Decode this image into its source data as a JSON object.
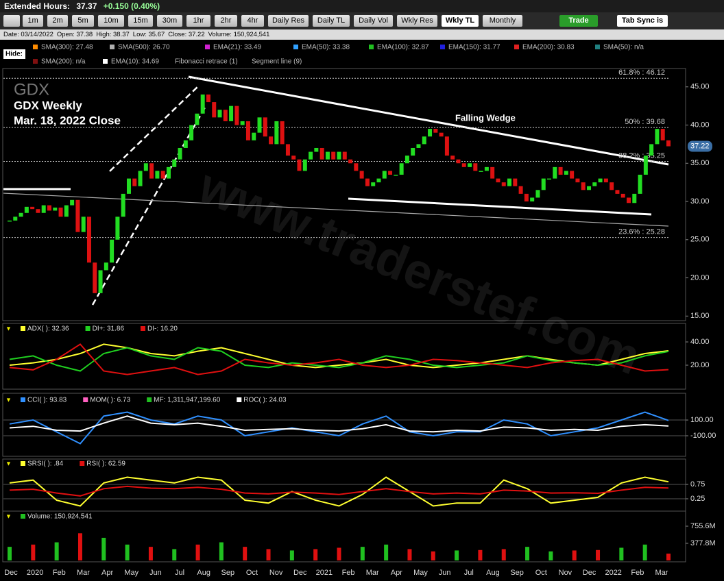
{
  "quote": {
    "label": "Extended Hours:",
    "price": "37.37",
    "change": "+0.150 (0.40%)"
  },
  "toolbar": {
    "buttons": [
      "1m",
      "2m",
      "5m",
      "10m",
      "15m",
      "30m",
      "1hr",
      "2hr",
      "4hr",
      "Daily Res",
      "Daily TL",
      "Daily Vol",
      "Wkly Res",
      "Wkly TL",
      "Monthly"
    ],
    "active": "Wkly TL",
    "trade": "Trade",
    "tab_sync": "Tab Sync is On"
  },
  "info": [
    "Date: 03/14/2022",
    "Open: 37.38",
    "High: 38.37",
    "Low: 35.67",
    "Close: 37.22",
    "Volume: 150,924,541"
  ],
  "hide": "Hide:",
  "chart_data": [
    {
      "type": "candlestick",
      "symbol": "GDX",
      "title": "GDX Weekly",
      "subtitle": "Mar. 18, 2022 Close",
      "annotation": "Falling Wedge",
      "watermark": "www.traderstef.com",
      "indicators": [
        {
          "name": "SMA(300): 27.48",
          "color": "#ff8c00"
        },
        {
          "name": "SMA(500): 26.70",
          "color": "#b0b0b0"
        },
        {
          "name": "EMA(21): 33.49",
          "color": "#d020d0"
        },
        {
          "name": "EMA(50): 33.38",
          "color": "#30a0ff"
        },
        {
          "name": "EMA(100): 32.87",
          "color": "#20c020"
        },
        {
          "name": "EMA(150): 31.77",
          "color": "#2020e0"
        },
        {
          "name": "EMA(200): 30.83",
          "color": "#e02020"
        },
        {
          "name": "SMA(50): n/a",
          "color": "#208080"
        },
        {
          "name": "SMA(200): n/a",
          "color": "#801010"
        },
        {
          "name": "EMA(10): 34.69",
          "color": "#ffffff"
        },
        {
          "name": "Fibonacci retrace (1)",
          "color": null
        },
        {
          "name": "Segment line (9)",
          "color": null
        }
      ],
      "fibonacci": [
        {
          "label": "61.8% : 46.12",
          "value": 46.12
        },
        {
          "label": "50% : 39.68",
          "value": 39.68
        },
        {
          "label": "38.2% : 35.25",
          "value": 35.25
        },
        {
          "label": "23.6% : 25.28",
          "value": 25.28
        }
      ],
      "values": [
        27.5,
        28,
        28.5,
        29.3,
        29,
        28.5,
        29.5,
        28.8,
        29.2,
        28,
        29.5,
        30.2,
        26,
        28,
        22,
        18,
        21,
        22,
        25,
        28,
        31,
        33,
        32,
        34,
        35,
        33,
        34,
        33,
        34.5,
        35.5,
        37,
        38,
        40,
        41.5,
        44,
        43,
        41,
        42,
        40.5,
        42.5,
        40,
        40.5,
        38,
        39,
        41,
        38.5,
        37.5,
        40.5,
        37.5,
        36,
        35.5,
        34,
        35.5,
        36.5,
        37,
        35.5,
        36.5,
        35.5,
        36.5,
        35.5,
        35,
        34,
        33,
        32,
        32.5,
        33,
        34,
        33.5,
        33.5,
        35,
        36,
        37,
        37.5,
        38.5,
        39.5,
        39,
        38.5,
        36,
        35.5,
        35,
        34.5,
        35,
        34,
        34,
        34.5,
        33,
        32.5,
        32,
        33,
        32,
        31,
        30,
        30.5,
        31.5,
        33,
        33,
        34.5,
        33.5,
        34,
        33,
        32.5,
        31.5,
        32,
        32.5,
        33,
        32.5,
        31.5,
        31,
        30.5,
        29.8,
        31,
        33.5,
        36,
        37.5,
        39.5,
        38,
        37.22
      ],
      "up_color": "#22dd22",
      "down_color": "#dd1111",
      "ylim": [
        14.4,
        47.4
      ],
      "yticks": [
        {
          "value": 45,
          "label": "45.00"
        },
        {
          "value": 40,
          "label": "40.00"
        },
        {
          "value": 35,
          "label": "35.00"
        },
        {
          "value": 30,
          "label": "30.00"
        },
        {
          "value": 25,
          "label": "25.00"
        },
        {
          "value": 20,
          "label": "20.00"
        },
        {
          "value": 15,
          "label": "15.00"
        }
      ]
    },
    {
      "type": "line",
      "ylim": [
        -0.6,
        46.5
      ],
      "yticks": [
        {
          "value": 40,
          "label": "40.00"
        },
        {
          "value": 20,
          "label": "20.00"
        }
      ],
      "series": [
        {
          "name": "ADX( ): 32.36",
          "color": "#ffff30",
          "values": [
            20,
            22,
            25,
            30,
            38,
            35,
            30,
            28,
            32,
            35,
            30,
            25,
            20,
            18,
            20,
            22,
            25,
            20,
            18,
            20,
            22,
            25,
            28,
            25,
            22,
            20,
            25,
            30,
            32.36
          ]
        },
        {
          "name": "DI+: 31.86",
          "color": "#20d020",
          "values": [
            25,
            28,
            20,
            15,
            30,
            35,
            28,
            25,
            35,
            32,
            20,
            18,
            22,
            20,
            18,
            22,
            28,
            25,
            20,
            18,
            20,
            22,
            28,
            24,
            22,
            20,
            22,
            28,
            31.86
          ]
        },
        {
          "name": "DI-: 16.20",
          "color": "#e01010",
          "values": [
            18,
            16,
            25,
            38,
            15,
            12,
            15,
            18,
            12,
            15,
            25,
            22,
            20,
            22,
            25,
            20,
            18,
            20,
            25,
            24,
            22,
            20,
            18,
            22,
            24,
            25,
            20,
            15,
            16.2
          ]
        }
      ]
    },
    {
      "type": "line",
      "ylim": [
        -352,
        283
      ],
      "yticks": [
        {
          "value": 100,
          "label": "100.00"
        },
        {
          "value": -100,
          "label": "-100.00"
        }
      ],
      "series": [
        {
          "name": "CCI( ): 93.83",
          "color": "#3090ff",
          "values": [
            50,
            100,
            -50,
            -200,
            150,
            200,
            100,
            50,
            150,
            100,
            -100,
            -50,
            0,
            -50,
            -100,
            50,
            150,
            -50,
            -100,
            -50,
            -50,
            100,
            50,
            -100,
            -50,
            0,
            100,
            200,
            93.83
          ]
        },
        {
          "name": "MOM( ): 6.73",
          "color": "#ff60c0"
        },
        {
          "name": "MF: 1,311,947,199.60",
          "color": "#20c020"
        },
        {
          "name": "ROC( ): 24.03",
          "color": "#ffffff",
          "values": [
            0,
            20,
            -30,
            -40,
            60,
            150,
            60,
            40,
            60,
            20,
            -30,
            -20,
            -10,
            -30,
            -40,
            -10,
            40,
            -40,
            -50,
            -30,
            -40,
            10,
            0,
            -30,
            -20,
            -30,
            20,
            40,
            24.03
          ]
        }
      ]
    },
    {
      "type": "line",
      "ylim": [
        -0.155,
        1.274
      ],
      "y2lim": [
        -15.5,
        127.4
      ],
      "yticks": [
        0.75,
        0.25
      ],
      "series": [
        {
          "name": "SRSI( ): .84",
          "color": "#ffff30",
          "values": [
            0.8,
            0.9,
            0.2,
            0,
            0.8,
            1,
            0.9,
            0.8,
            1,
            0.9,
            0.2,
            0.1,
            0.5,
            0.2,
            0,
            0.4,
            1,
            0.5,
            0,
            0.1,
            0.1,
            0.9,
            0.6,
            0.1,
            0.2,
            0.3,
            0.8,
            1,
            0.84
          ]
        },
        {
          "name": "RSI( ): 62.59",
          "color": "#e01010",
          "axis": "y2",
          "values": [
            55,
            58,
            45,
            35,
            60,
            68,
            62,
            60,
            65,
            58,
            45,
            42,
            48,
            45,
            40,
            50,
            60,
            50,
            42,
            45,
            42,
            55,
            52,
            45,
            46,
            44,
            55,
            65,
            62.59
          ]
        }
      ]
    },
    {
      "type": "bar",
      "ylim": [
        0,
        876500000
      ],
      "yticks": [
        {
          "value": 755600000,
          "label": "755.6M"
        },
        {
          "value": 377800000,
          "label": "377.8M"
        }
      ],
      "series": [
        {
          "name": "Volume: 150,924,541",
          "color": "#20c020"
        }
      ],
      "values": [
        300000000,
        350000000,
        400000000,
        600000000,
        500000000,
        350000000,
        300000000,
        250000000,
        350000000,
        400000000,
        300000000,
        250000000,
        220000000,
        250000000,
        280000000,
        300000000,
        350000000,
        250000000,
        200000000,
        220000000,
        230000000,
        250000000,
        300000000,
        200000000,
        220000000,
        230000000,
        280000000,
        350000000,
        150924541
      ],
      "bar_colors": [
        "#20c020",
        "#e01010",
        "#20c020",
        "#e01010",
        "#20c020",
        "#20c020",
        "#e01010",
        "#20c020",
        "#e01010",
        "#20c020",
        "#e01010",
        "#e01010",
        "#20c020",
        "#e01010",
        "#e01010",
        "#20c020",
        "#20c020",
        "#e01010",
        "#e01010",
        "#20c020",
        "#e01010",
        "#e01010",
        "#20c020",
        "#20c020",
        "#e01010",
        "#e01010",
        "#20c020",
        "#20c020",
        "#e01010"
      ],
      "x_labels": [
        "Dec",
        "2020",
        "Feb",
        "Mar",
        "Apr",
        "May",
        "Jun",
        "Jul",
        "Aug",
        "Sep",
        "Oct",
        "Nov",
        "Dec",
        "2021",
        "Feb",
        "Mar",
        "Apr",
        "May",
        "Jun",
        "Jul",
        "Aug",
        "Sep",
        "Oct",
        "Nov",
        "Dec",
        "2022",
        "Feb",
        "Mar"
      ]
    }
  ]
}
